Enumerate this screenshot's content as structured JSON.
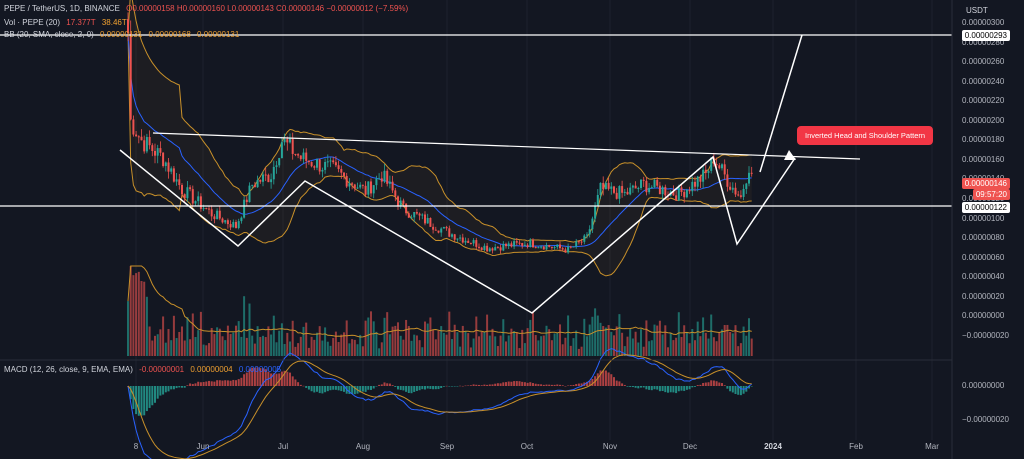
{
  "legend": {
    "symbol": "PEPE / TetherUS, 1D, BINANCE",
    "ohlc": "O0.00000158 H0.00000160 L0.00000143 C0.00000146 −0.00000012 (−7.59%)",
    "vol_label": "Vol · PEPE (20)",
    "vol_v1": "17.377T",
    "vol_v2": "38.46T",
    "bb_label": "BB (20, SMA, close, 2, 0)",
    "bb_v1": "0.00000131",
    "bb_v2": "0.00000168",
    "bb_v3": "0.00000131",
    "macd_label": "MACD (12, 26, close, 9, EMA, EMA)",
    "macd_v1": "-0.00000001",
    "macd_v2": "0.00000004",
    "macd_v3": "0.00000005"
  },
  "currency": "USDT",
  "price_axis": [
    "0.00000300",
    "0.00000280",
    "0.00000260",
    "0.00000240",
    "0.00000220",
    "0.00000200",
    "0.00000180",
    "0.00000160",
    "0.00000140",
    "0.00000120",
    "0.00000100",
    "0.00000080",
    "0.00000060",
    "0.00000040",
    "0.00000020",
    "0.00000000",
    "−0.00000020"
  ],
  "macd_axis": [
    "0.00000000",
    "−0.00000020"
  ],
  "badges": {
    "top_line": "0.00000293",
    "current": "0.00000146",
    "timer": "09:57:20",
    "support": "0.00000122"
  },
  "x_labels": [
    "8",
    "Jun",
    "Jul",
    "Aug",
    "Sep",
    "Oct",
    "Nov",
    "Dec",
    "2024",
    "Feb",
    "Mar"
  ],
  "annotation": "Inverted Head and Shoulder Pattern",
  "colors": {
    "up": "#26a69a",
    "down": "#ef5350",
    "bb": "#c8902a",
    "ma": "#2962ff",
    "bg": "#131722"
  },
  "chart_data": {
    "type": "candlestick",
    "title": "PEPE / TetherUS, 1D, BINANCE",
    "anchors": [
      {
        "date": "May 05",
        "price": 2.9e-06
      },
      {
        "date": "May 06",
        "price": 2e-06
      },
      {
        "date": "May 10",
        "price": 1.8e-06
      },
      {
        "date": "May 18",
        "price": 1.62e-06
      },
      {
        "date": "May 25",
        "price": 1.3e-06
      },
      {
        "date": "Jun 05",
        "price": 1.05e-06
      },
      {
        "date": "Jun 14",
        "price": 9.2e-07
      },
      {
        "date": "Jun 20",
        "price": 1.35e-06
      },
      {
        "date": "Jun 27",
        "price": 1.45e-06
      },
      {
        "date": "Jul 01",
        "price": 1.8e-06
      },
      {
        "date": "Jul 08",
        "price": 1.62e-06
      },
      {
        "date": "Jul 20",
        "price": 1.5e-06
      },
      {
        "date": "Aug 01",
        "price": 1.28e-06
      },
      {
        "date": "Aug 07",
        "price": 1.45e-06
      },
      {
        "date": "Aug 15",
        "price": 1.1e-06
      },
      {
        "date": "Sep 01",
        "price": 8.5e-07
      },
      {
        "date": "Sep 15",
        "price": 7e-07
      },
      {
        "date": "Oct 01",
        "price": 7.5e-07
      },
      {
        "date": "Oct 15",
        "price": 6.8e-07
      },
      {
        "date": "Oct 22",
        "price": 8e-07
      },
      {
        "date": "Oct 27",
        "price": 1.3e-06
      },
      {
        "date": "Nov 05",
        "price": 1.25e-06
      },
      {
        "date": "Nov 12",
        "price": 1.35e-06
      },
      {
        "date": "Nov 25",
        "price": 1.25e-06
      },
      {
        "date": "Dec 05",
        "price": 1.45e-06
      },
      {
        "date": "Dec 08",
        "price": 1.62e-06
      },
      {
        "date": "Dec 14",
        "price": 1.35e-06
      },
      {
        "date": "Dec 18",
        "price": 1.22e-06
      },
      {
        "date": "Dec 21",
        "price": 1.55e-06
      },
      {
        "date": "Dec 22",
        "price": 1.46e-06
      }
    ],
    "levels": {
      "resistance_top": 2.93e-06,
      "support": 1.22e-06
    },
    "ylim": [
      -2e-07,
      3e-06
    ]
  }
}
